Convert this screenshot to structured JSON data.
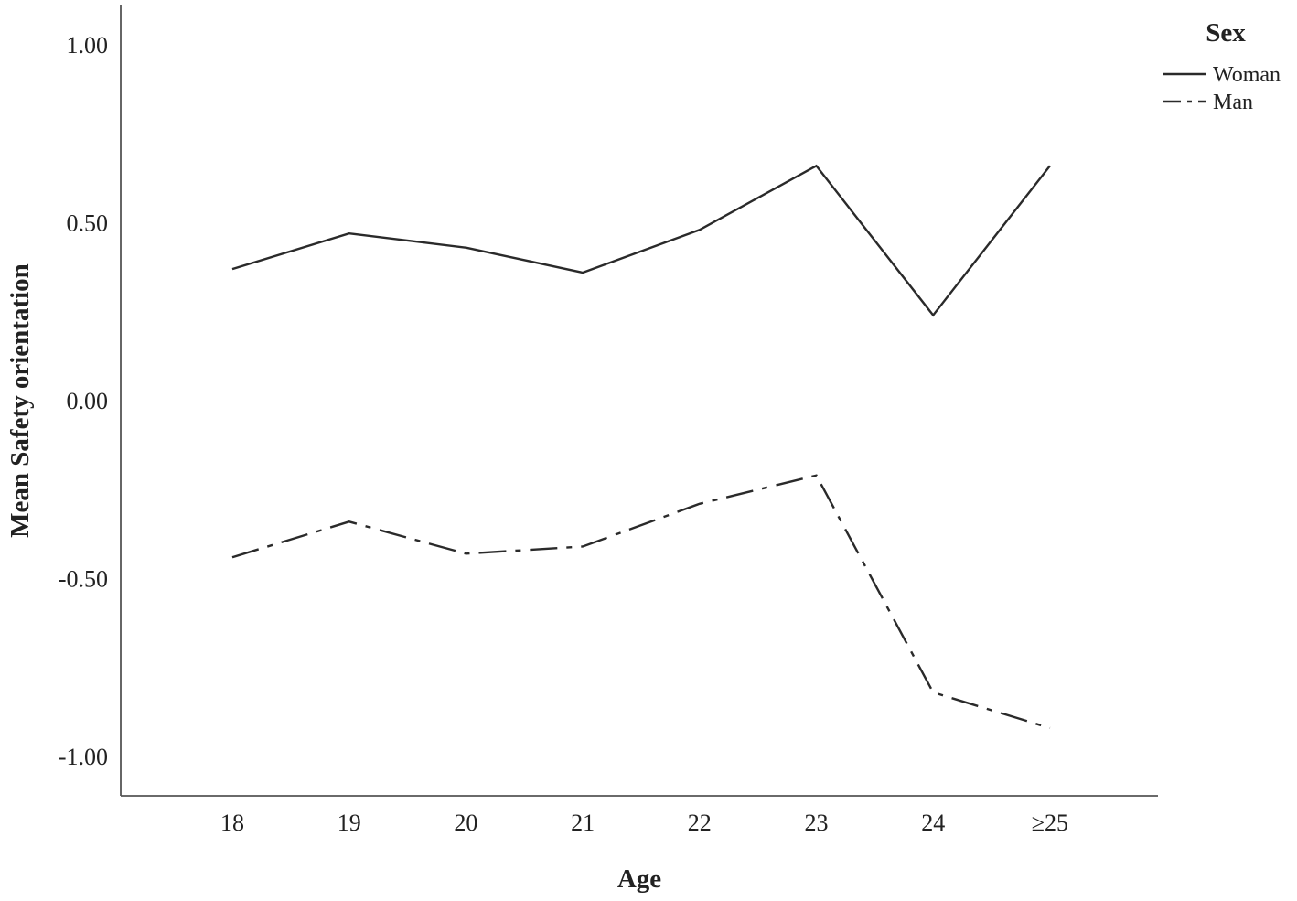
{
  "chart_data": {
    "type": "line",
    "xlabel": "Age",
    "ylabel": "Mean Safety orientation",
    "categories": [
      "18",
      "19",
      "20",
      "21",
      "22",
      "23",
      "24",
      "≥25"
    ],
    "yticks": [
      "1.00",
      "0.50",
      "0.00",
      "-0.50",
      "-1.00"
    ],
    "ytick_values": [
      1.0,
      0.5,
      0.0,
      -0.5,
      -1.0
    ],
    "ylim": [
      -1.1,
      1.1
    ],
    "grid": false,
    "legend": {
      "title": "Sex",
      "position": "top-right"
    },
    "series": [
      {
        "name": "Woman",
        "style": "solid",
        "values": [
          0.37,
          0.47,
          0.43,
          0.36,
          0.48,
          0.66,
          0.24,
          0.66
        ]
      },
      {
        "name": "Man",
        "style": "dash-dot",
        "values": [
          -0.44,
          -0.34,
          -0.43,
          -0.41,
          -0.29,
          -0.21,
          -0.82,
          -0.92
        ]
      }
    ],
    "line_color": "#2a2a2a",
    "axis_color": "#555555"
  }
}
